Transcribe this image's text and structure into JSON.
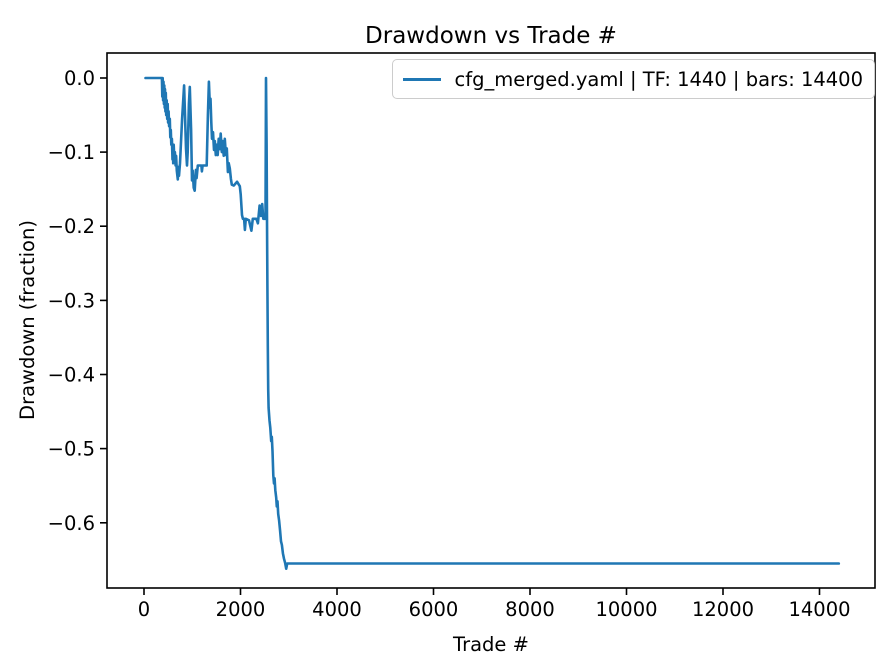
{
  "chart_data": {
    "type": "line",
    "title": "Drawdown vs Trade #",
    "xlabel": "Trade #",
    "ylabel": "Drawdown (fraction)",
    "grid": false,
    "legend_position": "upper right",
    "xlim": [
      -767,
      15150
    ],
    "ylim": [
      -0.688,
      0.0337
    ],
    "xticks": [
      0,
      2000,
      4000,
      6000,
      8000,
      10000,
      12000,
      14000
    ],
    "xtick_labels": [
      "0",
      "2000",
      "4000",
      "6000",
      "8000",
      "10000",
      "12000",
      "14000"
    ],
    "yticks": [
      0.0,
      -0.1,
      -0.2,
      -0.3,
      -0.4,
      -0.5,
      -0.6
    ],
    "ytick_labels": [
      "0.0",
      "−0.1",
      "−0.2",
      "−0.3",
      "−0.4",
      "−0.5",
      "−0.6"
    ],
    "axis_color": "#000000",
    "series": [
      {
        "name": "cfg_merged.yaml | TF: 1440 | bars: 14400",
        "color": "#1f77b4",
        "points": [
          [
            30,
            0
          ],
          [
            370,
            0
          ],
          [
            380,
            -0.025
          ],
          [
            388,
            0
          ],
          [
            396,
            -0.03
          ],
          [
            404,
            -0.005
          ],
          [
            412,
            -0.035
          ],
          [
            420,
            -0.01
          ],
          [
            428,
            -0.04
          ],
          [
            436,
            -0.015
          ],
          [
            444,
            -0.045
          ],
          [
            452,
            -0.02
          ],
          [
            460,
            -0.05
          ],
          [
            470,
            -0.03
          ],
          [
            480,
            -0.055
          ],
          [
            490,
            -0.035
          ],
          [
            500,
            -0.06
          ],
          [
            510,
            -0.045
          ],
          [
            520,
            -0.065
          ],
          [
            535,
            -0.055
          ],
          [
            545,
            -0.08
          ],
          [
            555,
            -0.07
          ],
          [
            565,
            -0.09
          ],
          [
            578,
            -0.082
          ],
          [
            590,
            -0.11
          ],
          [
            600,
            -0.095
          ],
          [
            605,
            -0.115
          ],
          [
            615,
            -0.09
          ],
          [
            625,
            -0.105
          ],
          [
            640,
            -0.1
          ],
          [
            655,
            -0.118
          ],
          [
            665,
            -0.105
          ],
          [
            680,
            -0.125
          ],
          [
            700,
            -0.137
          ],
          [
            712,
            -0.12
          ],
          [
            725,
            -0.132
          ],
          [
            745,
            -0.115
          ],
          [
            790,
            -0.055
          ],
          [
            830,
            -0.01
          ],
          [
            850,
            -0.05
          ],
          [
            870,
            -0.095
          ],
          [
            890,
            -0.118
          ],
          [
            905,
            -0.1
          ],
          [
            930,
            -0.035
          ],
          [
            950,
            -0.012
          ],
          [
            975,
            -0.07
          ],
          [
            995,
            -0.138
          ],
          [
            1010,
            -0.125
          ],
          [
            1030,
            -0.148
          ],
          [
            1050,
            -0.152
          ],
          [
            1075,
            -0.124
          ],
          [
            1090,
            -0.135
          ],
          [
            1115,
            -0.118
          ],
          [
            1190,
            -0.118
          ],
          [
            1200,
            -0.126
          ],
          [
            1215,
            -0.118
          ],
          [
            1300,
            -0.118
          ],
          [
            1325,
            -0.05
          ],
          [
            1345,
            -0.005
          ],
          [
            1365,
            -0.04
          ],
          [
            1378,
            -0.028
          ],
          [
            1395,
            -0.06
          ],
          [
            1410,
            -0.082
          ],
          [
            1430,
            -0.073
          ],
          [
            1450,
            -0.097
          ],
          [
            1468,
            -0.085
          ],
          [
            1488,
            -0.104
          ],
          [
            1508,
            -0.09
          ],
          [
            1528,
            -0.104
          ],
          [
            1548,
            -0.082
          ],
          [
            1570,
            -0.096
          ],
          [
            1590,
            -0.075
          ],
          [
            1612,
            -0.1
          ],
          [
            1630,
            -0.085
          ],
          [
            1652,
            -0.105
          ],
          [
            1675,
            -0.082
          ],
          [
            1698,
            -0.104
          ],
          [
            1715,
            -0.095
          ],
          [
            1738,
            -0.127
          ],
          [
            1755,
            -0.115
          ],
          [
            1778,
            -0.122
          ],
          [
            1800,
            -0.136
          ],
          [
            1820,
            -0.144
          ],
          [
            1860,
            -0.145
          ],
          [
            1930,
            -0.14
          ],
          [
            1985,
            -0.146
          ],
          [
            2005,
            -0.157
          ],
          [
            2030,
            -0.185
          ],
          [
            2050,
            -0.19
          ],
          [
            2075,
            -0.19
          ],
          [
            2090,
            -0.205
          ],
          [
            2110,
            -0.19
          ],
          [
            2175,
            -0.192
          ],
          [
            2225,
            -0.206
          ],
          [
            2255,
            -0.19
          ],
          [
            2330,
            -0.19
          ],
          [
            2360,
            -0.196
          ],
          [
            2395,
            -0.172
          ],
          [
            2425,
            -0.186
          ],
          [
            2450,
            -0.17
          ],
          [
            2472,
            -0.19
          ],
          [
            2518,
            -0.19
          ],
          [
            2528,
            0
          ],
          [
            2540,
            -0.09
          ],
          [
            2550,
            -0.19
          ],
          [
            2558,
            -0.28
          ],
          [
            2566,
            -0.36
          ],
          [
            2574,
            -0.42
          ],
          [
            2582,
            -0.445
          ],
          [
            2600,
            -0.462
          ],
          [
            2618,
            -0.472
          ],
          [
            2636,
            -0.49
          ],
          [
            2648,
            -0.484
          ],
          [
            2664,
            -0.503
          ],
          [
            2680,
            -0.536
          ],
          [
            2694,
            -0.547
          ],
          [
            2706,
            -0.54
          ],
          [
            2722,
            -0.556
          ],
          [
            2740,
            -0.566
          ],
          [
            2752,
            -0.578
          ],
          [
            2766,
            -0.571
          ],
          [
            2782,
            -0.588
          ],
          [
            2800,
            -0.597
          ],
          [
            2820,
            -0.611
          ],
          [
            2840,
            -0.625
          ],
          [
            2858,
            -0.63
          ],
          [
            2878,
            -0.641
          ],
          [
            2900,
            -0.648
          ],
          [
            2925,
            -0.654
          ],
          [
            2948,
            -0.662
          ],
          [
            2968,
            -0.655
          ],
          [
            14400,
            -0.655
          ]
        ]
      }
    ]
  },
  "legend": {
    "label": "cfg_merged.yaml | TF: 1440 | bars: 14400",
    "line_color": "#1f77b4",
    "border_color": "#cccccc"
  }
}
